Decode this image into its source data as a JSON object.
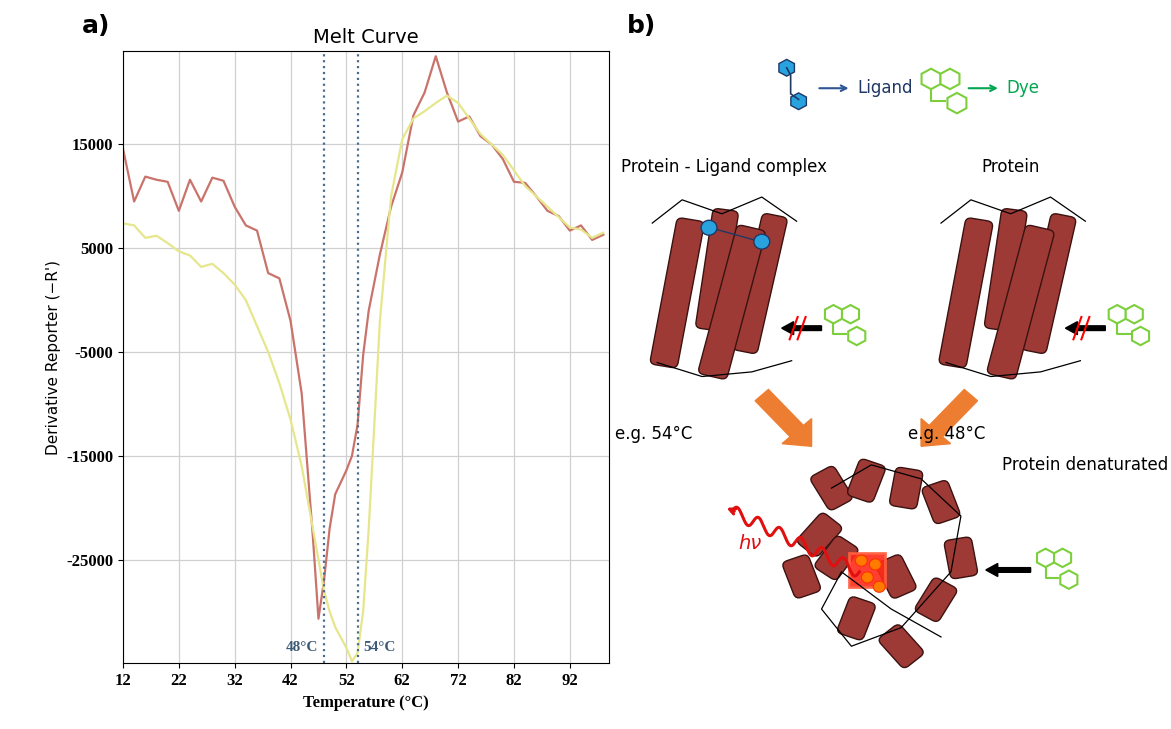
{
  "chart_data": {
    "type": "line",
    "title": "Melt Curve",
    "panel_label": "a)",
    "x_label": "Temperature (°C)",
    "y_label": "Derivative Reporter (−R')",
    "x": [
      12,
      14,
      16,
      18,
      20,
      22,
      24,
      26,
      28,
      30,
      32,
      34,
      36,
      38,
      40,
      42,
      44,
      46,
      47,
      48,
      49,
      50,
      52,
      53,
      54,
      55,
      56,
      58,
      60,
      62,
      64,
      66,
      68,
      70,
      72,
      74,
      76,
      78,
      80,
      82,
      84,
      86,
      88,
      90,
      92,
      94,
      96,
      98
    ],
    "series": [
      {
        "color": "#c9736b",
        "values": [
          14600,
          9500,
          11900,
          11600,
          11400,
          8600,
          11600,
          9500,
          11800,
          11500,
          9000,
          7200,
          6700,
          2600,
          2100,
          -2000,
          -9000,
          -22800,
          -30700,
          -27000,
          -22000,
          -18700,
          -16400,
          -15000,
          -12000,
          -5300,
          -1000,
          4400,
          9000,
          12300,
          17800,
          20000,
          23500,
          20000,
          17200,
          17700,
          15800,
          15000,
          13600,
          11400,
          11300,
          10000,
          8600,
          8100,
          6700,
          7200,
          5800,
          6300
        ]
      },
      {
        "color": "#e6e68c",
        "values": [
          7400,
          7200,
          6000,
          6200,
          5500,
          4700,
          4300,
          3200,
          3500,
          2600,
          1500,
          0,
          -2500,
          -5000,
          -8000,
          -11500,
          -16000,
          -22000,
          -25000,
          -28000,
          -30000,
          -31500,
          -33500,
          -34800,
          -34000,
          -30000,
          -22000,
          -2000,
          10000,
          15500,
          17500,
          18200,
          19000,
          19700,
          19000,
          17500,
          16000,
          15000,
          14000,
          12500,
          11000,
          10000,
          9000,
          8000,
          7000,
          6800,
          6000,
          6500
        ]
      }
    ],
    "annotations": [
      {
        "text": "48°C",
        "x": 48
      },
      {
        "text": "54°C",
        "x": 54
      }
    ],
    "xlim": [
      12,
      99
    ],
    "ylim": [
      -35000,
      24000
    ],
    "xticks": [
      12,
      22,
      32,
      42,
      52,
      62,
      72,
      82,
      92
    ],
    "yticks": [
      -25000,
      -15000,
      -5000,
      5000,
      15000
    ],
    "grid": true
  },
  "diagram": {
    "panel_label": "b)",
    "key": {
      "ligand": "Ligand",
      "dye": "Dye"
    },
    "states": {
      "complex": "Protein - Ligand complex",
      "protein": "Protein",
      "denatured": "Protein denaturated"
    },
    "temperatures": {
      "complex": "e.g. 54°C",
      "protein": "e.g. 48°C"
    },
    "emission": "hν"
  }
}
